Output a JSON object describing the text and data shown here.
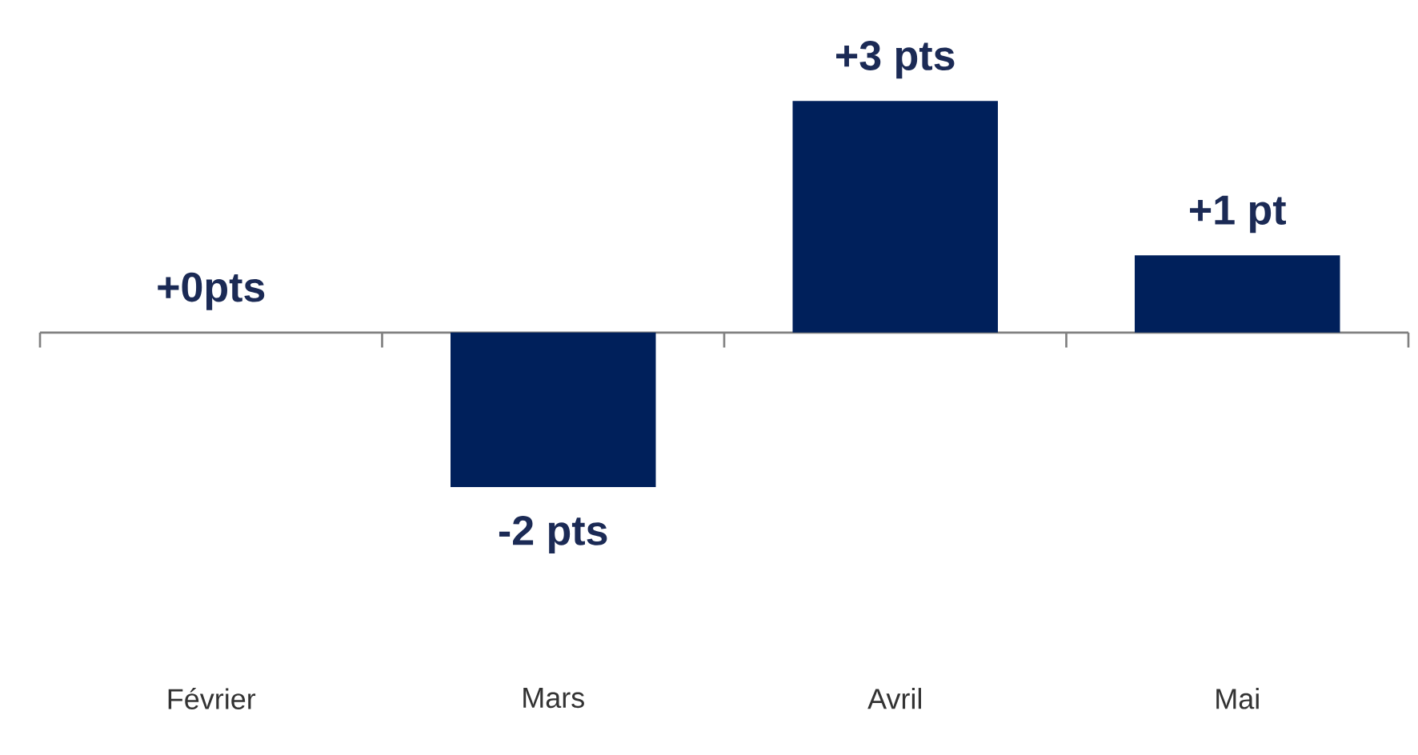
{
  "chart_data": {
    "type": "bar",
    "categories": [
      "Février",
      "Mars",
      "Avril",
      "Mai"
    ],
    "values": [
      0,
      -2,
      3,
      1
    ],
    "value_labels": [
      "+0pts",
      "-2 pts",
      "+3 pts",
      "+1 pt"
    ],
    "color": "#00205b"
  }
}
